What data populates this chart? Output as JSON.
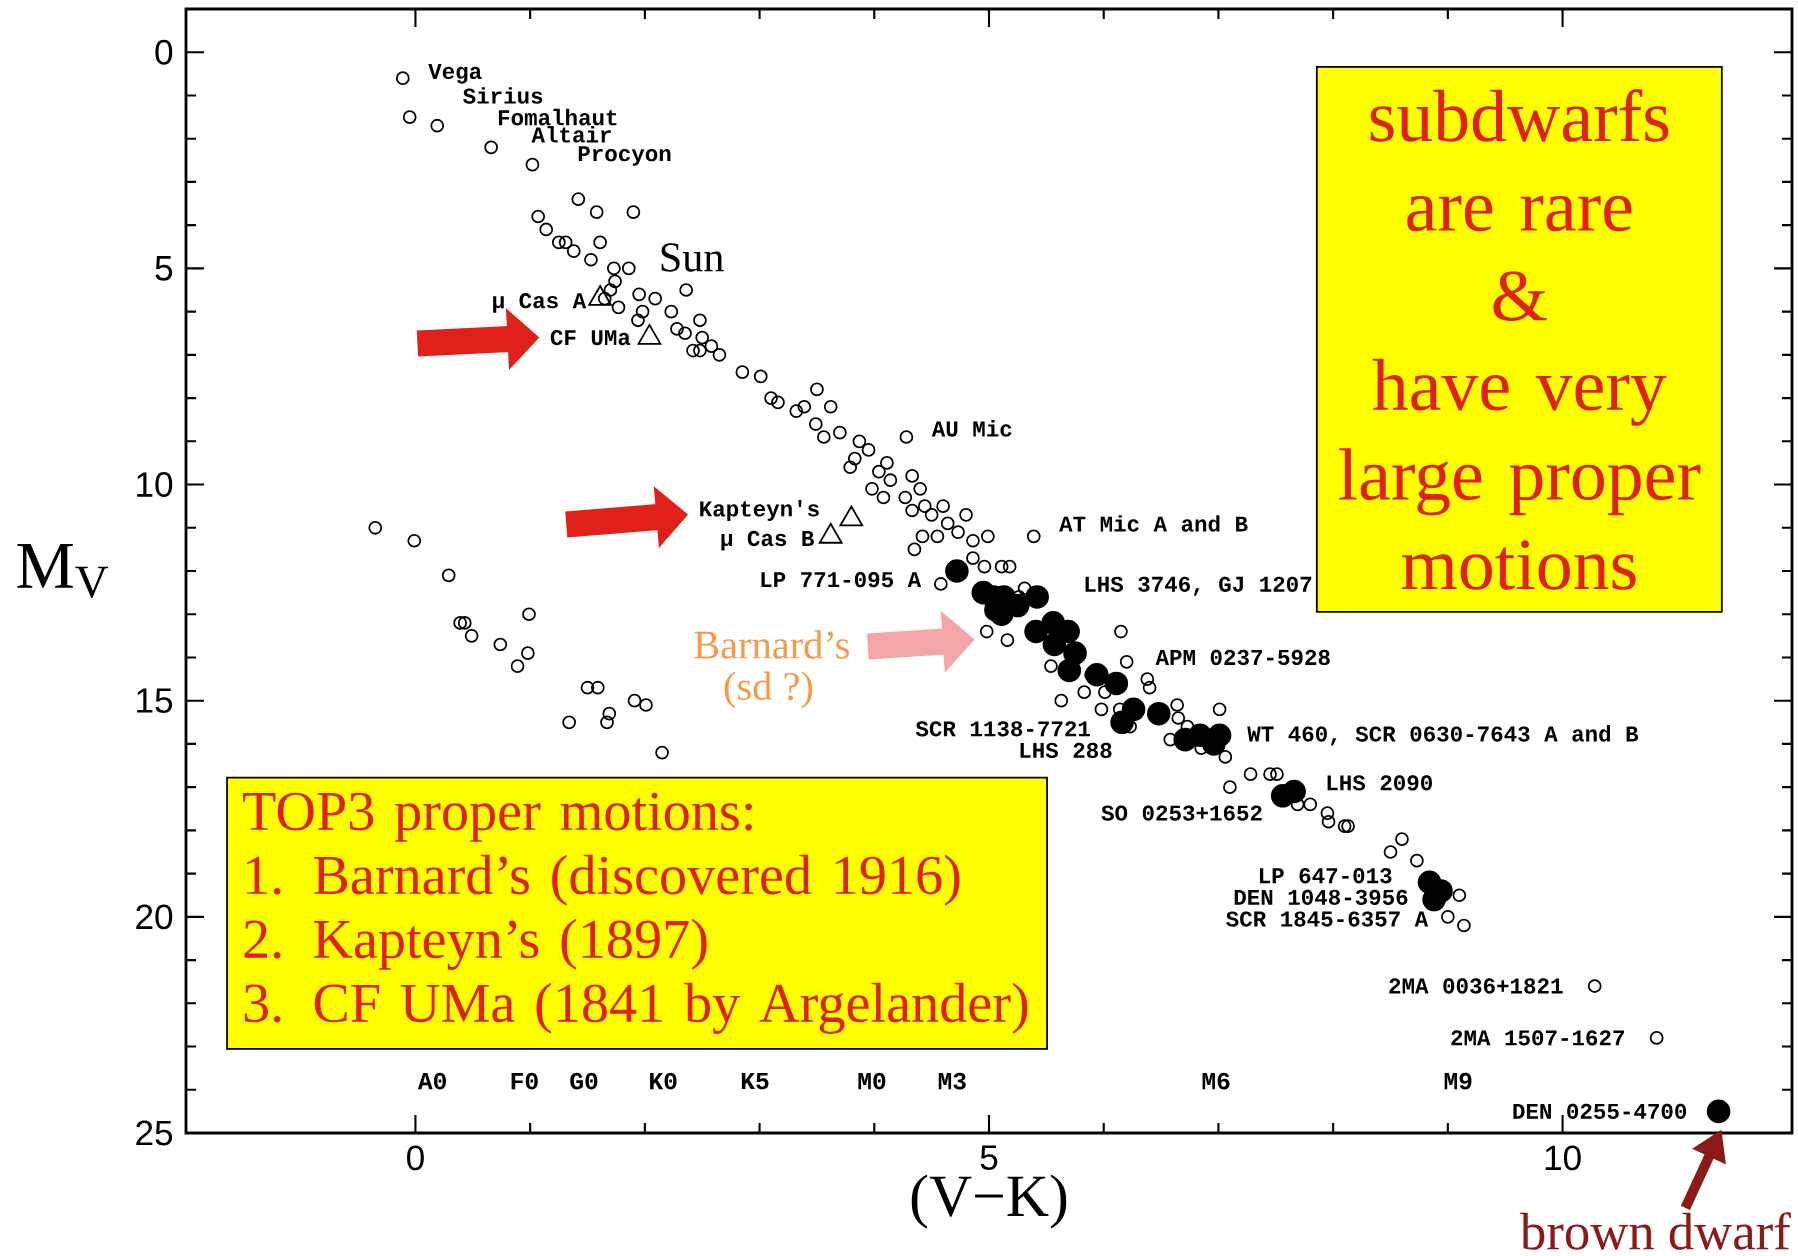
{
  "chart_data": {
    "type": "scatter",
    "xlabel": "(V−K)",
    "ylabel": "M$_{V}$",
    "xlim": [
      -2,
      12
    ],
    "ylim": [
      25,
      -1
    ],
    "xticks": [
      0,
      5,
      10
    ],
    "yticks": [
      0,
      5,
      10,
      15,
      20,
      25
    ],
    "series": [
      {
        "marker": "circle",
        "color": "#000000",
        "x": [
          -0.11,
          -0.05,
          0.19,
          0.66,
          1.02,
          1.07,
          1.14,
          1.42,
          1.58,
          1.9,
          1.25,
          1.31,
          1.38,
          1.61,
          1.53,
          1.73,
          1.86,
          1.74,
          1.7,
          1.65,
          1.77,
          1.95,
          1.98,
          2.09,
          1.94,
          2.36,
          2.23,
          2.28,
          2.35,
          2.48,
          2.5,
          2.42,
          2.48,
          2.58,
          2.65,
          2.85,
          3.01,
          3.1,
          3.16,
          3.32,
          3.39,
          3.5,
          3.62,
          3.49,
          3.56,
          3.7,
          3.87,
          3.95,
          3.79,
          3.83,
          4.04,
          3.98,
          4.14,
          4.08,
          4.28,
          4.11,
          4.33,
          4.4,
          4.27,
          4.44,
          4.5,
          4.33,
          4.6,
          4.64,
          4.55,
          4.42,
          4.8,
          4.73,
          4.86,
          4.99,
          4.35,
          5.39,
          4.86,
          4.96,
          4.58,
          5.11,
          5.18,
          5.31,
          5.26,
          4.98,
          5.16,
          5.54,
          6.15,
          6.2,
          5.89,
          5.83,
          5.63,
          6.01,
          6.38,
          6.4,
          5.98,
          6.14,
          6.23,
          6.64,
          6.65,
          6.73,
          7.01,
          6.58,
          6.85,
          7.06,
          7.1,
          7.28,
          7.45,
          7.51,
          7.69,
          7.8,
          7.95,
          7.96,
          8.1,
          8.13,
          8.5,
          8.6,
          8.73,
          9.1,
          9.0,
          9.14,
          10.28,
          10.82,
          -0.35,
          -0.01,
          0.29,
          0.39,
          0.43,
          0.49,
          0.99,
          0.74,
          0.98,
          0.89,
          1.5,
          1.59,
          1.34,
          1.69,
          1.67,
          1.91,
          2.01,
          2.15
        ],
        "values": [
          0.6,
          1.5,
          1.7,
          2.2,
          2.6,
          3.8,
          4.1,
          3.4,
          3.7,
          3.7,
          4.4,
          4.4,
          4.6,
          4.4,
          4.8,
          5.0,
          5.0,
          5.3,
          5.5,
          5.7,
          5.9,
          5.6,
          6.0,
          5.7,
          6.2,
          5.5,
          6.0,
          6.4,
          6.5,
          6.2,
          6.6,
          6.9,
          6.9,
          6.8,
          7.0,
          7.4,
          7.5,
          8.0,
          8.1,
          8.3,
          8.2,
          7.8,
          8.2,
          8.6,
          8.9,
          8.8,
          9.0,
          9.2,
          9.6,
          9.4,
          9.7,
          10.1,
          9.9,
          10.3,
          8.9,
          9.5,
          9.8,
          10.1,
          10.3,
          10.5,
          10.7,
          10.6,
          10.5,
          10.9,
          11.2,
          11.2,
          10.7,
          11.1,
          11.3,
          11.2,
          11.5,
          11.2,
          11.7,
          11.9,
          12.3,
          11.9,
          11.9,
          12.4,
          12.6,
          13.4,
          13.6,
          14.2,
          13.4,
          14.1,
          14.4,
          14.8,
          15.0,
          14.8,
          14.5,
          14.7,
          15.2,
          15.2,
          15.6,
          15.1,
          15.4,
          15.6,
          15.2,
          15.9,
          16.1,
          16.3,
          17.0,
          16.7,
          16.7,
          16.7,
          17.4,
          17.4,
          17.6,
          17.8,
          17.9,
          17.9,
          18.5,
          18.2,
          18.7,
          19.5,
          20.0,
          20.2,
          21.6,
          22.8,
          11.0,
          11.3,
          12.1,
          13.2,
          13.2,
          13.5,
          13.0,
          13.7,
          13.9,
          14.2,
          14.7,
          14.7,
          15.5,
          15.3,
          15.5,
          15.0,
          15.1,
          16.2
        ]
      },
      {
        "marker": "filled circle",
        "color": "#000000",
        "x": [
          4.72,
          4.95,
          5.04,
          5.13,
          5.06,
          5.11,
          5.25,
          5.42,
          5.41,
          5.56,
          5.57,
          5.69,
          5.75,
          5.7,
          5.94,
          6.11,
          6.26,
          6.16,
          6.48,
          6.71,
          6.84,
          7.01,
          6.96,
          7.56,
          7.66,
          8.84,
          8.88,
          8.94,
          11.36
        ],
        "values": [
          12.0,
          12.5,
          12.6,
          12.6,
          12.9,
          13.0,
          12.8,
          12.6,
          13.4,
          13.2,
          13.7,
          13.4,
          13.9,
          14.3,
          14.4,
          14.6,
          15.2,
          15.5,
          15.3,
          15.9,
          15.8,
          15.8,
          16.0,
          17.2,
          17.1,
          19.2,
          19.6,
          19.4,
          24.5
        ]
      },
      {
        "marker": "triangle",
        "color": "#000000",
        "x": [
          1.61,
          2.04,
          3.62,
          3.8
        ],
        "values": [
          5.7,
          6.6,
          11.2,
          10.8
        ]
      }
    ],
    "annotations": [
      "subdwarfs",
      "are rare",
      "&",
      "have very",
      "large proper",
      "motions",
      "TOP3 proper motions:",
      "1. Barnard’s (discovered 1916)",
      "2. Kapteyn’s (1897)",
      "3. CF UMa  (1841 by Argelander)",
      "brown dwarf",
      "Barnard’s",
      "(sd ?)",
      "A0",
      "F0",
      "G0",
      "K0",
      "K5",
      "M0",
      "M3",
      "M6",
      "M9",
      {
        "text": "Vega",
        "x": -0.11,
        "y": 0.6
      },
      {
        "text": "Sirius",
        "x": -0.05,
        "y": 1.5
      },
      {
        "text": "Fomalhaut",
        "x": 0.19,
        "y": 1.7
      },
      {
        "text": "Altair",
        "x": 0.66,
        "y": 2.2
      },
      {
        "text": "Procyon",
        "x": 1.02,
        "y": 2.6
      },
      {
        "text": "Sun",
        "x": 1.53,
        "y": 4.8
      },
      {
        "text": "μ Cas A",
        "x": 1.61,
        "y": 5.7
      },
      {
        "text": "CF UMa",
        "x": 2.04,
        "y": 6.6
      },
      {
        "text": "AU Mic",
        "x": 4.28,
        "y": 8.9
      },
      {
        "text": "Kapteyn's",
        "x": 3.8,
        "y": 10.8
      },
      {
        "text": "μ Cas B",
        "x": 3.62,
        "y": 11.2
      },
      {
        "text": "AT Mic A and B",
        "x": 5.39,
        "y": 11.2
      },
      {
        "text": "LP 771-095 A",
        "x": 4.58,
        "y": 12.3
      },
      {
        "text": "LHS 3746, GJ 1207",
        "x": 5.42,
        "y": 12.6
      },
      {
        "text": "APM 0237-5928",
        "x": 6.2,
        "y": 14.1
      },
      {
        "text": "SCR 1138-7721",
        "x": 6.16,
        "y": 15.5
      },
      {
        "text": "LHS 288",
        "x": 6.23,
        "y": 15.6
      },
      {
        "text": "WT 460, SCR 0630-7643 A and B",
        "x": 7.01,
        "y": 15.8
      },
      {
        "text": "LHS 2090",
        "x": 7.66,
        "y": 17.1
      },
      {
        "text": "SO 0253+1652",
        "x": 7.56,
        "y": 17.2
      },
      {
        "text": "LP 647-013",
        "x": 8.84,
        "y": 19.2
      },
      {
        "text": "DEN 1048-3956",
        "x": 8.88,
        "y": 19.6
      },
      {
        "text": "SCR 1845-6357 A",
        "x": 9.0,
        "y": 20.0
      },
      {
        "text": "2MA 0036+1821",
        "x": 10.28,
        "y": 21.6
      },
      {
        "text": "2MA 1507-1627",
        "x": 10.82,
        "y": 22.8
      },
      {
        "text": "DEN 0255-4700",
        "x": 11.36,
        "y": 24.5
      }
    ]
  }
}
